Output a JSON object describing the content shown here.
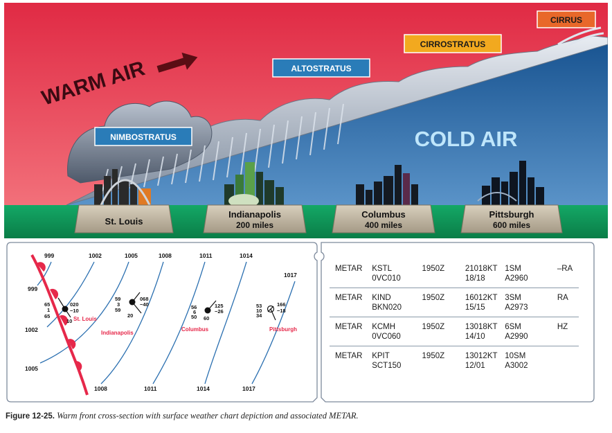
{
  "cross_section": {
    "warm_air_label": "WARM AIR",
    "cold_air_label": "COLD AIR",
    "clouds": [
      {
        "label": "CIRRUS",
        "color": "#e8682a"
      },
      {
        "label": "CIRROSTRATUS",
        "color": "#f2a91f"
      },
      {
        "label": "ALTOSTRATUS",
        "color": "#2a7cb8"
      },
      {
        "label": "NIMBOSTRATUS",
        "color": "#2a7cb8"
      }
    ],
    "cities": [
      {
        "name": "St. Louis",
        "distance": ""
      },
      {
        "name": "Indianapolis",
        "distance": "200 miles"
      },
      {
        "name": "Columbus",
        "distance": "400 miles"
      },
      {
        "name": "Pittsburgh",
        "distance": "600 miles"
      }
    ],
    "colors": {
      "warm": "#e8344a",
      "cold": "#1f5f9c",
      "ground": "#0f9a5a",
      "front": "#e6284a"
    }
  },
  "surface_chart": {
    "isobars_top": [
      "999",
      "1002",
      "1005",
      "1008",
      "1011",
      "1014",
      "1017"
    ],
    "isobars_left": [
      "999",
      "1002",
      "1005"
    ],
    "isobars_bottom": [
      "1008",
      "1011",
      "1014",
      "1017"
    ],
    "stations": [
      {
        "name": "St. Louis",
        "temp": "65",
        "dew": "65",
        "pressure": "020",
        "trend": "−10",
        "extra": "1",
        "gust": "10"
      },
      {
        "name": "Indianapolis",
        "temp": "59",
        "dew": "59",
        "pressure": "068",
        "trend": "−40",
        "extra": "3",
        "gust": "20"
      },
      {
        "name": "Columbus",
        "temp": "56",
        "dew": "50",
        "pressure": "125",
        "trend": "−26",
        "extra": "6",
        "gust": "60"
      },
      {
        "name": "Pittsburgh",
        "temp": "53",
        "dew": "34",
        "pressure": "166",
        "trend": "−18",
        "extra": "10",
        "gust": ""
      }
    ]
  },
  "metar": [
    {
      "type": "METAR",
      "station": "KSTL",
      "time": "1950Z",
      "wind": "21018KT",
      "vis": "1SM",
      "wx": "–RA",
      "sky": "0VC010",
      "temp": "18/18",
      "alt": "A2960"
    },
    {
      "type": "METAR",
      "station": "KIND",
      "time": "1950Z",
      "wind": "16012KT",
      "vis": "3SM",
      "wx": "RA",
      "sky": "BKN020",
      "temp": "15/15",
      "alt": "A2973"
    },
    {
      "type": "METAR",
      "station": "KCMH",
      "time": "1950Z",
      "wind": "13018KT",
      "vis": "6SM",
      "wx": "HZ",
      "sky": "0VC060",
      "temp": "14/10",
      "alt": "A2990"
    },
    {
      "type": "METAR",
      "station": "KPIT",
      "time": "1950Z",
      "wind": "13012KT",
      "vis": "10SM",
      "wx": "",
      "sky": "SCT150",
      "temp": "12/01",
      "alt": "A3002"
    }
  ],
  "caption": {
    "label": "Figure 12-25.",
    "text": "Warm front cross-section with surface weather chart depiction and associated METAR."
  }
}
